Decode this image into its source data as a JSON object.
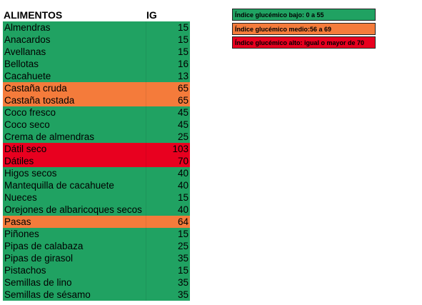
{
  "colors": {
    "low": "#20a262",
    "medium": "#f47b3b",
    "high": "#e8001f"
  },
  "table": {
    "header_name": "ALIMENTOS",
    "header_ig": "IG",
    "rows": [
      {
        "name": "Almendras",
        "ig": "15",
        "level": "low"
      },
      {
        "name": "Anacardos",
        "ig": "15",
        "level": "low"
      },
      {
        "name": "Avellanas",
        "ig": "15",
        "level": "low"
      },
      {
        "name": "Bellotas",
        "ig": "16",
        "level": "low"
      },
      {
        "name": "Cacahuete",
        "ig": "13",
        "level": "low"
      },
      {
        "name": "Castaña cruda",
        "ig": "65",
        "level": "medium"
      },
      {
        "name": "Castaña tostada",
        "ig": "65",
        "level": "medium"
      },
      {
        "name": "Coco fresco",
        "ig": "45",
        "level": "low"
      },
      {
        "name": "Coco seco",
        "ig": "45",
        "level": "low"
      },
      {
        "name": "Crema de almendras",
        "ig": "25",
        "level": "low"
      },
      {
        "name": "Dátil seco",
        "ig": "103",
        "level": "high"
      },
      {
        "name": "Dátiles",
        "ig": "70",
        "level": "high"
      },
      {
        "name": "Higos secos",
        "ig": "40",
        "level": "low"
      },
      {
        "name": "Mantequilla de cacahuete",
        "ig": "40",
        "level": "low"
      },
      {
        "name": "Nueces",
        "ig": "15",
        "level": "low"
      },
      {
        "name": "Orejones de albaricoques secos",
        "ig": "40",
        "level": "low"
      },
      {
        "name": "Pasas",
        "ig": "64",
        "level": "medium"
      },
      {
        "name": "Piñones",
        "ig": "15",
        "level": "low"
      },
      {
        "name": "Pipas de calabaza",
        "ig": "25",
        "level": "low"
      },
      {
        "name": "Pipas de girasol",
        "ig": "35",
        "level": "low"
      },
      {
        "name": "Pistachos",
        "ig": "15",
        "level": "low"
      },
      {
        "name": "Semillas de lino",
        "ig": "35",
        "level": "low"
      },
      {
        "name": "Semillas de sésamo",
        "ig": "35",
        "level": "low"
      }
    ]
  },
  "legend": {
    "low": "Índice glucémico bajo: 0 a 55",
    "medium": "Índice glucémico medio:56 a 69",
    "high": "Índice glucémico alto: igual o mayor de 70"
  }
}
